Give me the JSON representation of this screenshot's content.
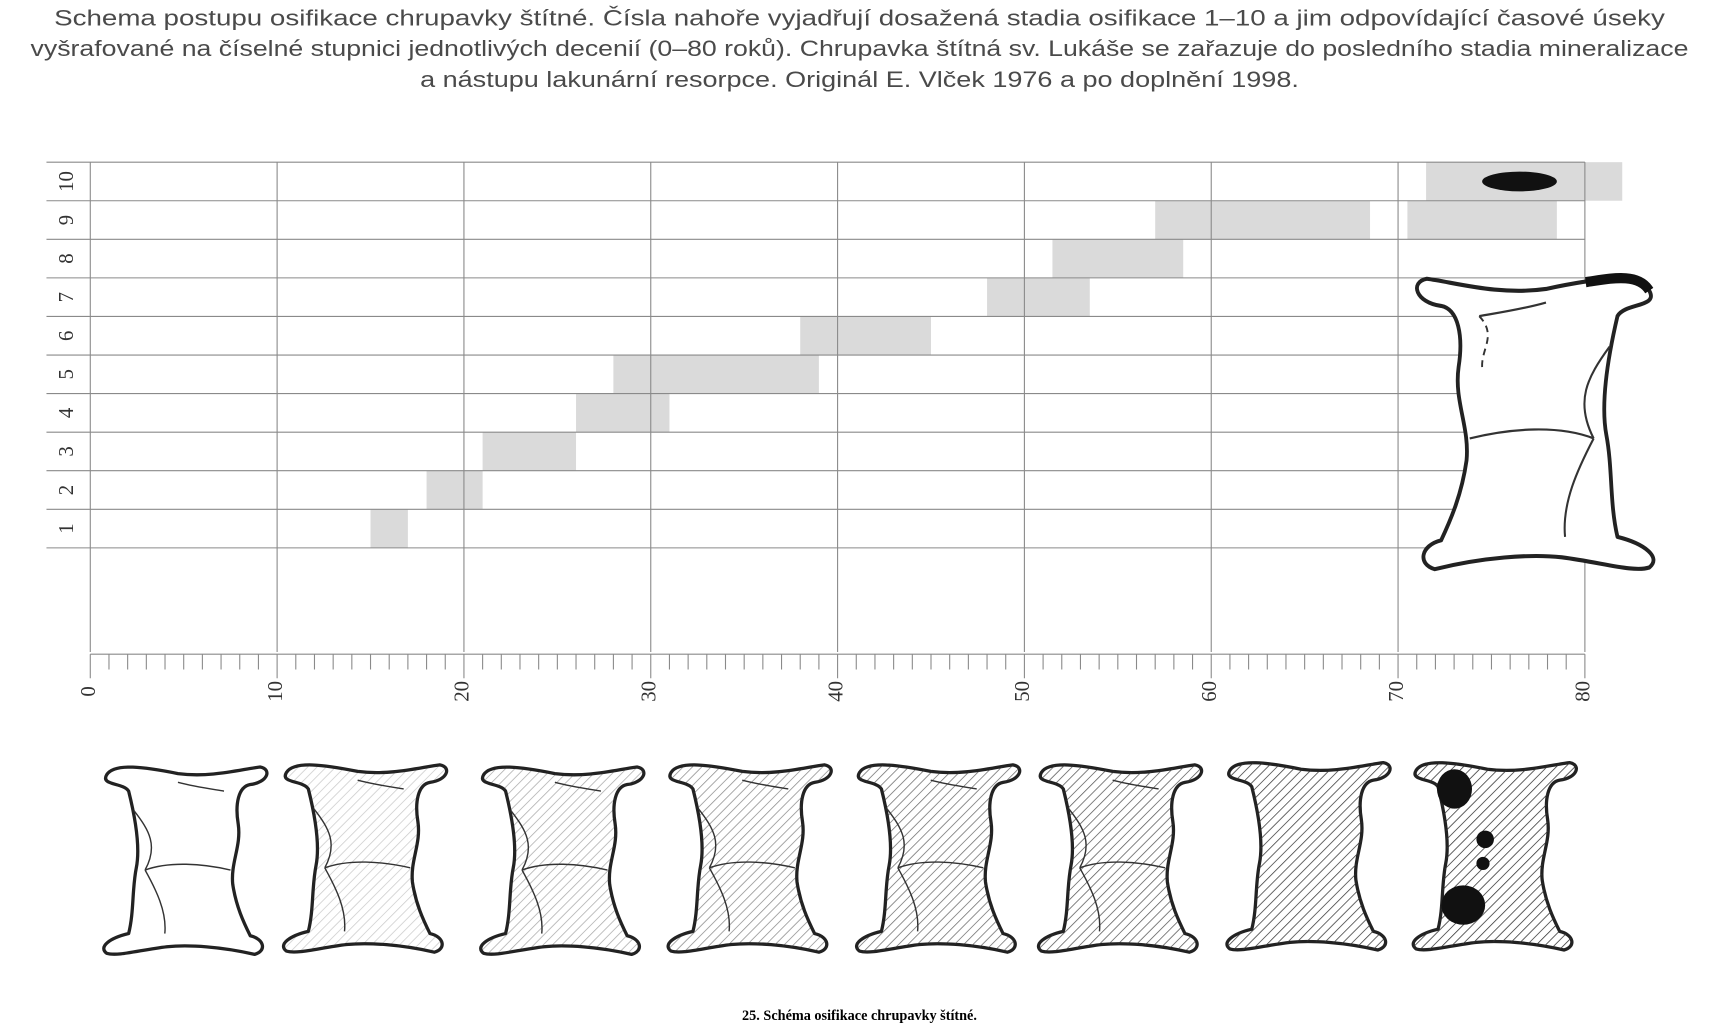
{
  "chart_data": {
    "type": "range-bar",
    "title": [
      "Schema postupu osifikace chrupavky štítné. Čísla nahoře vyjadřují dosažená stadia osifikace 1–10 a jim odpovídající časové úseky",
      "vyšrafované na číselné stupnici jednotlivých decenií (0–80 roků). Chrupavka štítná sv. Lukáše se zařazuje do posledního stadia mineralizace",
      "a nástupu lakunární resorpce. Originál E. Vlček 1976 a po doplnění 1998."
    ],
    "caption": "25. Schéma osifikace chrupavky štítné.",
    "categories": [
      "1",
      "2",
      "3",
      "4",
      "5",
      "6",
      "7",
      "8",
      "9",
      "10"
    ],
    "ranges": [
      [
        [
          15,
          17
        ]
      ],
      [
        [
          18,
          21
        ]
      ],
      [
        [
          21,
          26
        ]
      ],
      [
        [
          26,
          31
        ]
      ],
      [
        [
          28,
          39
        ]
      ],
      [
        [
          38,
          45
        ]
      ],
      [
        [
          48,
          53.5
        ]
      ],
      [
        [
          51.5,
          58.5
        ]
      ],
      [
        [
          57,
          68.5
        ],
        [
          70.5,
          78.5
        ]
      ],
      [
        [
          71.5,
          82
        ]
      ]
    ],
    "color": "#dadada",
    "marker": {
      "category": "10",
      "range": [
        74.5,
        78.5
      ],
      "color": "#111111"
    },
    "xlim": [
      0,
      80
    ],
    "xticks": [
      0,
      10,
      20,
      30,
      40,
      50,
      60,
      70,
      80
    ],
    "minor_xticks": [
      1,
      2,
      3,
      4,
      5,
      6,
      7,
      8,
      9,
      11,
      12,
      13,
      14,
      15,
      16,
      17,
      18,
      19,
      21,
      22,
      23,
      24,
      25,
      26,
      27,
      28,
      29,
      31,
      32,
      33,
      34,
      35,
      36,
      37,
      38,
      39,
      41,
      42,
      43,
      44,
      45,
      46,
      47,
      48,
      49,
      51,
      52,
      53,
      54,
      55,
      56,
      57,
      58,
      59,
      61,
      62,
      63,
      64,
      65,
      66,
      67,
      68,
      69,
      71,
      72,
      73,
      74,
      75,
      76,
      77,
      78,
      79
    ],
    "grid": true
  }
}
